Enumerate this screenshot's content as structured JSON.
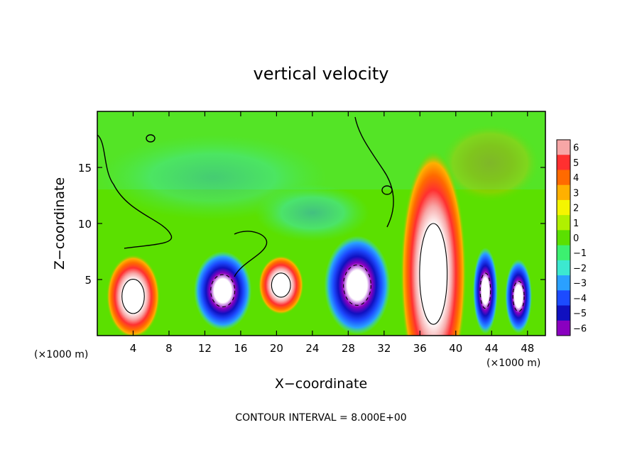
{
  "chart_data": {
    "type": "heatmap",
    "title": "vertical velocity",
    "xlabel": "X−coordinate",
    "ylabel": "Z−coordinate",
    "x_unit_left": "(×1000 m)",
    "x_unit_right": "(×1000 m)",
    "footer": "CONTOUR INTERVAL = 8.000E+00",
    "xlim": [
      0,
      50
    ],
    "ylim": [
      0,
      20
    ],
    "x_ticks": [
      "4",
      "8",
      "12",
      "16",
      "20",
      "24",
      "28",
      "32",
      "36",
      "40",
      "44",
      "48"
    ],
    "y_ticks": [
      "5",
      "10",
      "15"
    ],
    "colorbar_labels": [
      "6",
      "5",
      "4",
      "3",
      "2",
      "1",
      "0",
      "−1",
      "−2",
      "−3",
      "−4",
      "−5",
      "−6"
    ],
    "colorbar_colors": [
      "#f7a6a6",
      "#ff3030",
      "#ff6a00",
      "#ffb000",
      "#f5f500",
      "#b0f000",
      "#5be000",
      "#3cf070",
      "#3ce8d0",
      "#2aa0ff",
      "#1c4bff",
      "#1010c0",
      "#8a00c0"
    ],
    "features": [
      {
        "kind": "updraft",
        "x": 4,
        "z": 3.5,
        "rx": 2.6,
        "rz": 3.4
      },
      {
        "kind": "downdraft",
        "x": 14,
        "z": 4,
        "rx": 2.8,
        "rz": 3.2
      },
      {
        "kind": "updraft",
        "x": 20.5,
        "z": 4.5,
        "rx": 2.2,
        "rz": 2.4
      },
      {
        "kind": "downdraft",
        "x": 29,
        "z": 4.5,
        "rx": 3.2,
        "rz": 4.0
      },
      {
        "kind": "updraft",
        "x": 37.5,
        "z": 5.5,
        "rx": 3.2,
        "rz": 10.0
      },
      {
        "kind": "downdraft",
        "x": 43.3,
        "z": 4.0,
        "rx": 1.2,
        "rz": 3.5
      },
      {
        "kind": "downdraft",
        "x": 47,
        "z": 3.5,
        "rx": 1.3,
        "rz": 3.0
      }
    ]
  }
}
